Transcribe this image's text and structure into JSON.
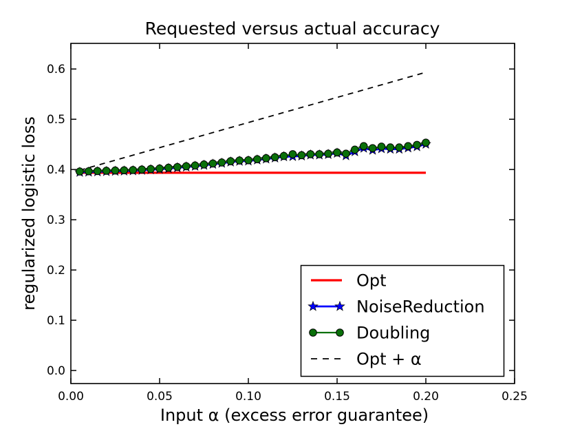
{
  "chart_data": {
    "type": "line",
    "title": "Requested versus actual accuracy",
    "xlabel": "Input α (excess error guarantee)",
    "ylabel": "regularized logistic loss",
    "xlim": [
      0.0,
      0.25
    ],
    "ylim": [
      -0.026,
      0.651
    ],
    "x_ticks": [
      0.0,
      0.05,
      0.1,
      0.15,
      0.2,
      0.25
    ],
    "x_tick_labels": [
      "0.00",
      "0.05",
      "0.10",
      "0.15",
      "0.20",
      "0.25"
    ],
    "y_ticks": [
      0.0,
      0.1,
      0.2,
      0.3,
      0.4,
      0.5,
      0.6
    ],
    "y_tick_labels": [
      "0.0",
      "0.1",
      "0.2",
      "0.3",
      "0.4",
      "0.5",
      "0.6"
    ],
    "grid": false,
    "axes_color": "#000000",
    "legend": {
      "position": "lower-right-inside",
      "entries": [
        "Opt",
        "NoiseReduction",
        "Doubling",
        "Opt + α"
      ]
    },
    "series": [
      {
        "name": "Opt",
        "color": "#ff0000",
        "line_style": "solid",
        "line_width": 3.2,
        "marker": "none",
        "x": [
          0.005,
          0.2
        ],
        "y": [
          0.3935,
          0.3935
        ]
      },
      {
        "name": "NoiseReduction",
        "color": "#0000ff",
        "line_style": "solid",
        "line_width": 2.8,
        "marker": "star",
        "x": [
          0.005,
          0.01,
          0.015,
          0.02,
          0.025,
          0.03,
          0.035,
          0.04,
          0.045,
          0.05,
          0.055,
          0.06,
          0.065,
          0.07,
          0.075,
          0.08,
          0.085,
          0.09,
          0.095,
          0.1,
          0.105,
          0.11,
          0.115,
          0.12,
          0.125,
          0.13,
          0.135,
          0.14,
          0.145,
          0.15,
          0.155,
          0.16,
          0.165,
          0.17,
          0.175,
          0.18,
          0.185,
          0.19,
          0.195,
          0.2
        ],
        "y": [
          0.3945,
          0.395,
          0.3955,
          0.396,
          0.3965,
          0.397,
          0.3975,
          0.3985,
          0.3995,
          0.4005,
          0.402,
          0.4035,
          0.405,
          0.4065,
          0.4085,
          0.4105,
          0.4125,
          0.415,
          0.4165,
          0.417,
          0.419,
          0.421,
          0.423,
          0.4255,
          0.426,
          0.427,
          0.429,
          0.429,
          0.43,
          0.4325,
          0.4275,
          0.4355,
          0.4425,
          0.4385,
          0.4415,
          0.4405,
          0.4405,
          0.443,
          0.4455,
          0.4505
        ]
      },
      {
        "name": "Doubling",
        "color": "#0a700a",
        "line_style": "solid",
        "line_width": 2.2,
        "marker": "circle",
        "x": [
          0.005,
          0.01,
          0.015,
          0.02,
          0.025,
          0.03,
          0.035,
          0.04,
          0.045,
          0.05,
          0.055,
          0.06,
          0.065,
          0.07,
          0.075,
          0.08,
          0.085,
          0.09,
          0.095,
          0.1,
          0.105,
          0.11,
          0.115,
          0.12,
          0.125,
          0.13,
          0.135,
          0.14,
          0.145,
          0.15,
          0.155,
          0.16,
          0.165,
          0.17,
          0.175,
          0.18,
          0.185,
          0.19,
          0.195,
          0.2
        ],
        "y": [
          0.396,
          0.3965,
          0.397,
          0.3975,
          0.398,
          0.3985,
          0.399,
          0.4,
          0.401,
          0.402,
          0.4035,
          0.405,
          0.4065,
          0.408,
          0.41,
          0.412,
          0.414,
          0.4165,
          0.418,
          0.4185,
          0.4205,
          0.4225,
          0.4245,
          0.427,
          0.4305,
          0.4285,
          0.4305,
          0.4305,
          0.4315,
          0.434,
          0.4315,
          0.4395,
          0.4465,
          0.4425,
          0.4455,
          0.444,
          0.444,
          0.4465,
          0.449,
          0.4535
        ]
      },
      {
        "name": "Opt + α",
        "color": "#000000",
        "line_style": "dashed",
        "line_width": 1.8,
        "marker": "none",
        "x": [
          0.005,
          0.2
        ],
        "y": [
          0.3985,
          0.5935
        ]
      }
    ]
  }
}
